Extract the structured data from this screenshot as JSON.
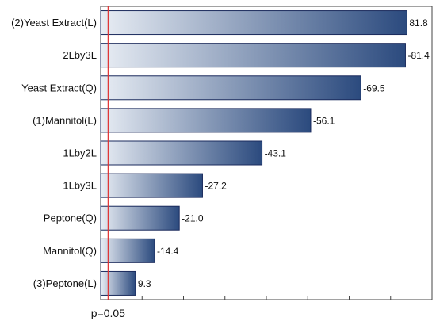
{
  "chart_data": {
    "type": "bar",
    "orientation": "horizontal",
    "title": "",
    "xlabel": "",
    "ylabel": "",
    "categories": [
      "(2)Yeast Extract(L)",
      "2Lby3L",
      "Yeast Extract(Q)",
      "(1)Mannitol(L)",
      "1Lby2L",
      "1Lby3L",
      "Peptone(Q)",
      "Mannitol(Q)",
      "(3)Peptone(L)"
    ],
    "values": [
      81.8,
      -81.4,
      -69.5,
      -56.1,
      -43.1,
      -27.2,
      -21.0,
      -14.4,
      9.3
    ],
    "value_labels": [
      "81.8",
      "-81.4",
      "-69.5",
      "-56.1",
      "-43.1",
      "-27.2",
      "-21.0",
      "-14.4",
      "9.3"
    ],
    "bar_length": "absolute value",
    "xlim": [
      0,
      88.5
    ],
    "reference_line": {
      "label": "p=0.05",
      "value": 1.98,
      "color": "#e03030"
    },
    "grid": false,
    "colors": {
      "bar_start": "#e8edf4",
      "bar_end": "#2b4a7e",
      "bar_border": "#1a2a5c",
      "axis": "#444444"
    }
  }
}
